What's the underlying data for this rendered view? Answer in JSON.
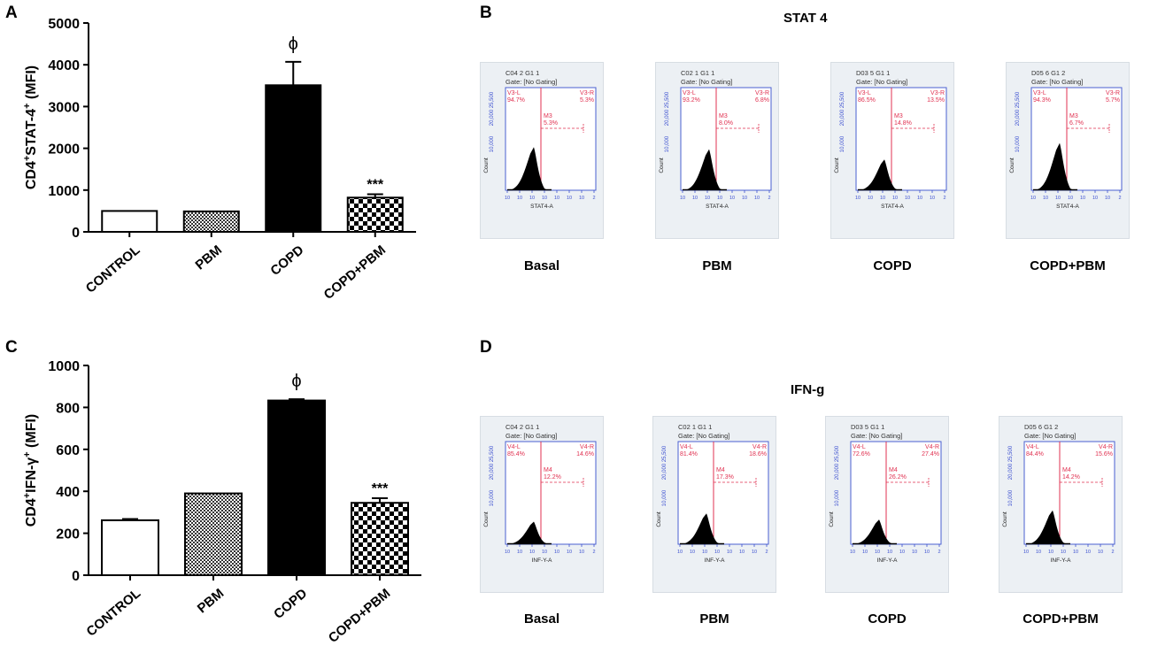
{
  "panels": {
    "a": "A",
    "b": "B",
    "c": "C",
    "d": "D"
  },
  "chart_data": [
    {
      "type": "bar",
      "panel": "A",
      "title": "",
      "xlabel": "",
      "ylabel_parts": [
        "CD4",
        "+",
        "STAT-4",
        "+",
        " (MFI)"
      ],
      "categories": [
        "CONTROL",
        "PBM",
        "COPD",
        "COPD+PBM"
      ],
      "values": [
        500,
        490,
        3510,
        820
      ],
      "errors": [
        0,
        0,
        560,
        80
      ],
      "annotations": [
        "",
        "",
        "ϕ",
        "***"
      ],
      "ylim": [
        0,
        5000
      ],
      "yticks": [
        0,
        1000,
        2000,
        3000,
        4000,
        5000
      ],
      "fills": [
        "white",
        "fine",
        "black",
        "checker"
      ]
    },
    {
      "type": "bar",
      "panel": "C",
      "title": "",
      "xlabel": "",
      "ylabel_parts": [
        "CD4",
        "+",
        "IFN-γ",
        "+",
        " (MFI)"
      ],
      "categories": [
        "CONTROL",
        "PBM",
        "COPD",
        "COPD+PBM"
      ],
      "values": [
        262,
        390,
        833,
        345
      ],
      "errors": [
        6,
        0,
        6,
        22
      ],
      "annotations": [
        "",
        "",
        "ϕ",
        "***"
      ],
      "ylim": [
        0,
        1000
      ],
      "yticks": [
        0,
        200,
        400,
        600,
        800,
        1000
      ],
      "fills": [
        "white",
        "fine",
        "black",
        "checker"
      ]
    }
  ],
  "stat_section": {
    "title": "STAT 4",
    "xaxis_label": "STAT4-A",
    "marker_l": "V3-L",
    "marker_r": "V3-R",
    "marker_m": "M3",
    "plots": [
      {
        "header": "C04 2 G1 1",
        "gate": "Gate: [No Gating]",
        "left_pct": "94.7%",
        "right_pct": "5.3%",
        "m_pct": "5.3%",
        "label": "Basal",
        "peak": 0.42
      },
      {
        "header": "C02 1 G1 1",
        "gate": "Gate: [No Gating]",
        "left_pct": "93.2%",
        "right_pct": "6.8%",
        "m_pct": "8.0%",
        "label": "PBM",
        "peak": 0.4
      },
      {
        "header": "D03 5 G1 1",
        "gate": "Gate: [No Gating]",
        "left_pct": "86.5%",
        "right_pct": "13.5%",
        "m_pct": "14.8%",
        "label": "COPD",
        "peak": 0.3
      },
      {
        "header": "D05 6 G1  2",
        "gate": "Gate: [No Gating]",
        "left_pct": "94.3%",
        "right_pct": "5.7%",
        "m_pct": "6.7%",
        "label": "COPD+PBM",
        "peak": 0.46
      }
    ]
  },
  "ifn_section": {
    "title": "IFN-g",
    "xaxis_label": "INF-Y-A",
    "marker_l": "V4-L",
    "marker_r": "V4-R",
    "marker_m": "M4",
    "plots": [
      {
        "header": "C04 2 G1 1",
        "gate": "Gate: [No Gating]",
        "left_pct": "85.4%",
        "right_pct": "14.6%",
        "m_pct": "12.2%",
        "label": "Basal",
        "peak": 0.22
      },
      {
        "header": "C02 1 G1 1",
        "gate": "Gate: [No Gating]",
        "left_pct": "81.4%",
        "right_pct": "18.6%",
        "m_pct": "17.3%",
        "label": "PBM",
        "peak": 0.3
      },
      {
        "header": "D03 5 G1 1",
        "gate": "Gate: [No Gating]",
        "left_pct": "72.6%",
        "right_pct": "27.4%",
        "m_pct": "26.2%",
        "label": "COPD",
        "peak": 0.24
      },
      {
        "header": "D05 6 G1  2",
        "gate": "Gate: [No Gating]",
        "left_pct": "84.4%",
        "right_pct": "15.6%",
        "m_pct": "14.2%",
        "label": "COPD+PBM",
        "peak": 0.33
      }
    ]
  },
  "hist_axis": {
    "y_top": "20,000 25,500",
    "y_mid": "10,000",
    "y_count": "Count",
    "x_ticks": [
      "10",
      "10",
      "10",
      "10",
      "10",
      "10",
      "10",
      "2"
    ]
  }
}
